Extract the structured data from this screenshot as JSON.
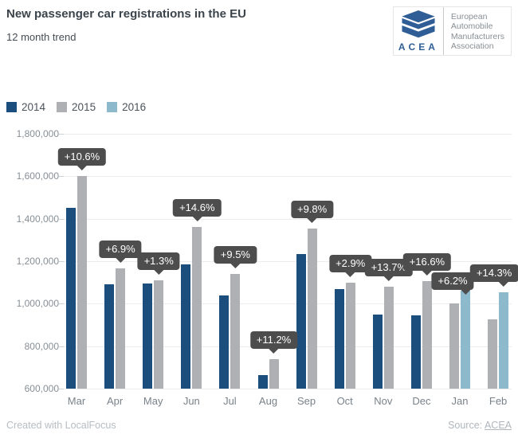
{
  "header": {
    "title": "New passenger car registrations in the EU",
    "subtitle": "12 month trend",
    "logo": {
      "acronym": "ACEA",
      "org_lines": [
        "European",
        "Automobile",
        "Manufacturers",
        "Association"
      ]
    }
  },
  "legend": [
    {
      "label": "2014",
      "color": "#1b4e7c"
    },
    {
      "label": "2015",
      "color": "#aeb0b3"
    },
    {
      "label": "2016",
      "color": "#8db9cd"
    }
  ],
  "chart_data": {
    "type": "bar",
    "title": "New passenger car registrations in the EU",
    "subtitle": "12 month trend",
    "categories": [
      "Mar",
      "Apr",
      "May",
      "Jun",
      "Jul",
      "Aug",
      "Sep",
      "Oct",
      "Nov",
      "Dec",
      "Jan",
      "Feb"
    ],
    "series": [
      {
        "name": "2014",
        "color": "#1b4e7c",
        "values": [
          1450000,
          1090000,
          1095000,
          1185000,
          1040000,
          665000,
          1235000,
          1070000,
          950000,
          945000,
          null,
          null
        ]
      },
      {
        "name": "2015",
        "color": "#aeb0b3",
        "values": [
          1600000,
          1165000,
          1110000,
          1360000,
          1140000,
          740000,
          1355000,
          1100000,
          1080000,
          1105000,
          1000000,
          925000
        ]
      },
      {
        "name": "2016",
        "color": "#8db9cd",
        "values": [
          null,
          null,
          null,
          null,
          null,
          null,
          null,
          null,
          null,
          null,
          1060000,
          1055000
        ]
      }
    ],
    "pct_change": [
      "+10.6%",
      "+6.9%",
      "+1.3%",
      "+14.6%",
      "+9.5%",
      "+11.2%",
      "+9.8%",
      "+2.9%",
      "+13.7%",
      "+16.6%",
      "+6.2%",
      "+14.3%"
    ],
    "ylabel": "",
    "xlabel": "",
    "ylim": [
      600000,
      1800000
    ],
    "ytick_step": 200000,
    "grid": true,
    "legend_position": "top-left"
  },
  "colors": {
    "tooltip_bg": "#4d4d4d",
    "tooltip_text": "#ffffff",
    "accent_blue": "#2e5e95"
  },
  "footer": {
    "credit": "Created with LocalFocus",
    "source_label": "Source:",
    "source_link": "ACEA"
  }
}
